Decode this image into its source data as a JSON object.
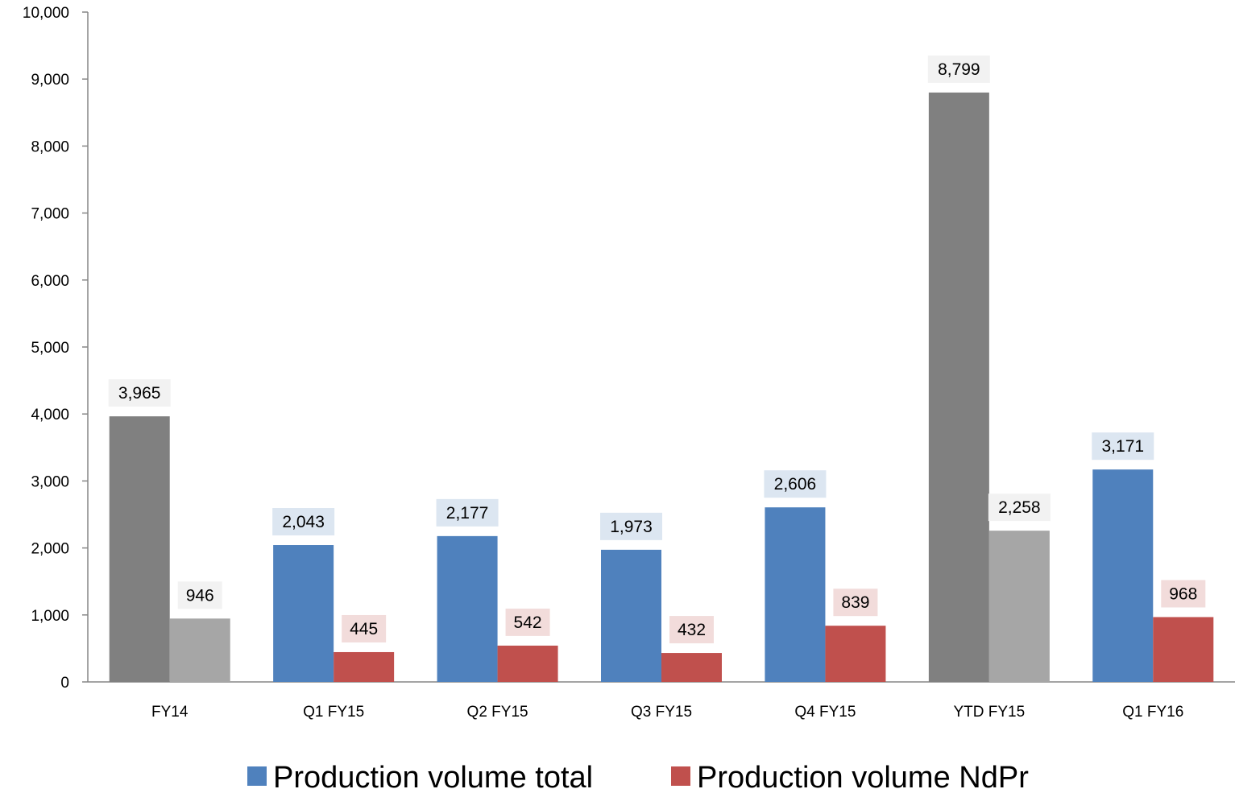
{
  "chart_data": {
    "type": "bar",
    "categories": [
      "FY14",
      "Q1 FY15",
      "Q2 FY15",
      "Q3 FY15",
      "Q4 FY15",
      "YTD FY15",
      "Q1 FY16"
    ],
    "series": [
      {
        "name": "Production volume total",
        "values": [
          3965,
          2043,
          2177,
          1973,
          2606,
          8799,
          3171
        ],
        "labels": [
          "3,965",
          "2,043",
          "2,177",
          "1,973",
          "2,606",
          "8,799",
          "3,171"
        ],
        "color": "#4F81BD",
        "point_colors": [
          "#808080",
          "#4F81BD",
          "#4F81BD",
          "#4F81BD",
          "#4F81BD",
          "#808080",
          "#4F81BD"
        ],
        "label_bg_colors": [
          "#F2F2F2",
          "#DCE6F1",
          "#DCE6F1",
          "#DCE6F1",
          "#DCE6F1",
          "#F2F2F2",
          "#DCE6F1"
        ]
      },
      {
        "name": "Production volume NdPr",
        "values": [
          946,
          445,
          542,
          432,
          839,
          2258,
          968
        ],
        "labels": [
          "946",
          "445",
          "542",
          "432",
          "839",
          "2,258",
          "968"
        ],
        "color": "#C0504D",
        "point_colors": [
          "#A6A6A6",
          "#C0504D",
          "#C0504D",
          "#C0504D",
          "#C0504D",
          "#A6A6A6",
          "#C0504D"
        ],
        "label_bg_colors": [
          "#F2F2F2",
          "#F2DCDB",
          "#F2DCDB",
          "#F2DCDB",
          "#F2DCDB",
          "#F2F2F2",
          "#F2DCDB"
        ]
      }
    ],
    "y_ticks": [
      "0",
      "1,000",
      "2,000",
      "3,000",
      "4,000",
      "5,000",
      "6,000",
      "7,000",
      "8,000",
      "9,000",
      "10,000"
    ],
    "ylim": [
      0,
      10000
    ],
    "title": "",
    "xlabel": "",
    "ylabel": "",
    "grid": false,
    "legend_position": "bottom"
  }
}
